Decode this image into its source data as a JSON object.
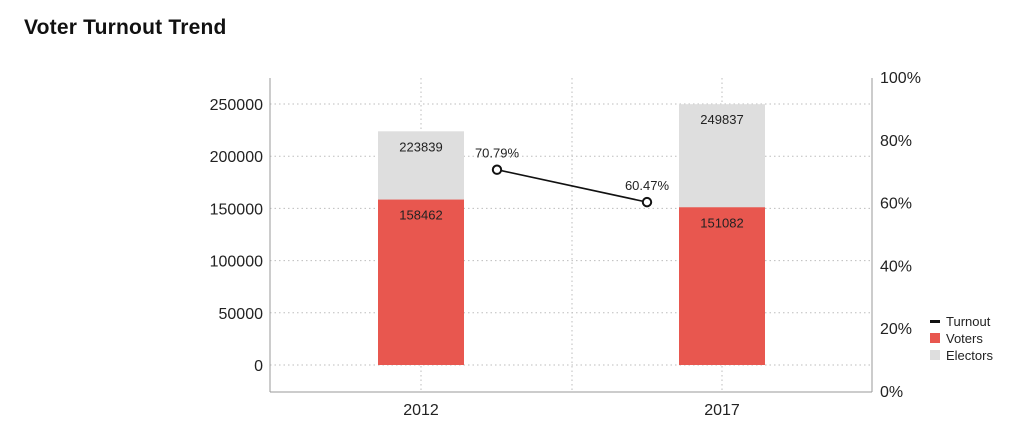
{
  "chart_data": {
    "type": "bar",
    "title": "Voter Turnout Trend",
    "categories": [
      "2012",
      "2017"
    ],
    "series": [
      {
        "name": "Voters",
        "kind": "bar",
        "values": [
          158462,
          151082
        ],
        "color": "#e8574f"
      },
      {
        "name": "Electors",
        "kind": "bar",
        "values": [
          223839,
          249837
        ],
        "color": "#dedede"
      },
      {
        "name": "Turnout",
        "kind": "line",
        "axis": "right",
        "values": [
          70.79,
          60.47
        ],
        "labels": [
          "70.79%",
          "60.47%"
        ],
        "color": "#111111"
      }
    ],
    "y_left": {
      "range": [
        0,
        275000
      ],
      "ticks": [
        "0",
        "50000",
        "100000",
        "150000",
        "200000",
        "250000"
      ]
    },
    "y_right": {
      "range": [
        0,
        100
      ],
      "ticks": [
        "0%",
        "20%",
        "40%",
        "60%",
        "80%",
        "100%"
      ]
    },
    "grid": "dotted",
    "legend": {
      "position": "right",
      "items": [
        "Turnout",
        "Voters",
        "Electors"
      ]
    }
  }
}
